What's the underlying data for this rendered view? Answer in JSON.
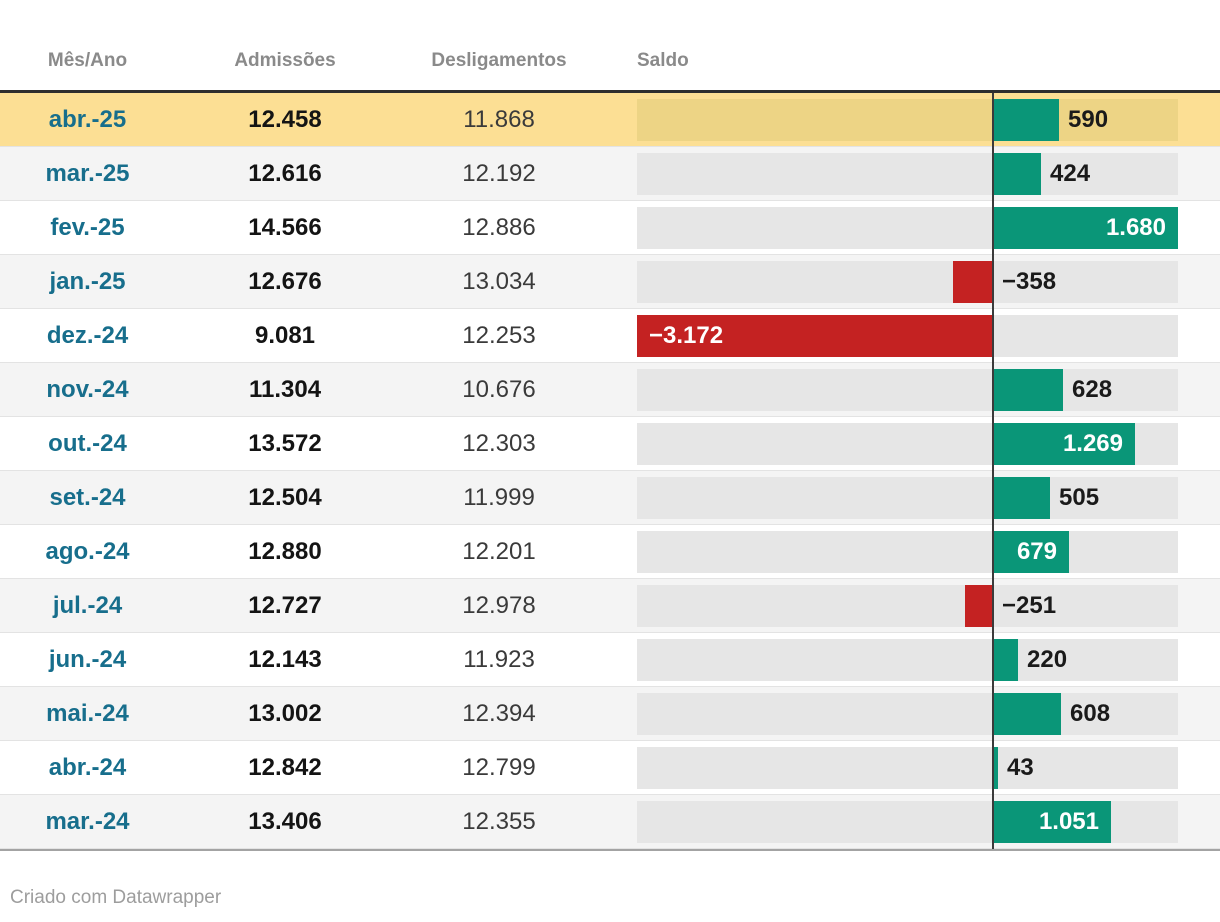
{
  "table": {
    "columns": [
      {
        "label": "Mês/Ano"
      },
      {
        "label": "Admissões"
      },
      {
        "label": "Desligamentos"
      },
      {
        "label": "Saldo"
      }
    ],
    "rows": [
      {
        "month": "abr.-25",
        "admissoes": "12.458",
        "desligamentos": "11.868",
        "saldo": 590,
        "saldo_display": "590",
        "label_inside": false,
        "highlighted": true
      },
      {
        "month": "mar.-25",
        "admissoes": "12.616",
        "desligamentos": "12.192",
        "saldo": 424,
        "saldo_display": "424",
        "label_inside": false,
        "highlighted": false
      },
      {
        "month": "fev.-25",
        "admissoes": "14.566",
        "desligamentos": "12.886",
        "saldo": 1680,
        "saldo_display": "1.680",
        "label_inside": true,
        "highlighted": false
      },
      {
        "month": "jan.-25",
        "admissoes": "12.676",
        "desligamentos": "13.034",
        "saldo": -358,
        "saldo_display": "−358",
        "label_inside": false,
        "highlighted": false
      },
      {
        "month": "dez.-24",
        "admissoes": "9.081",
        "desligamentos": "12.253",
        "saldo": -3172,
        "saldo_display": "−3.172",
        "label_inside": true,
        "highlighted": false
      },
      {
        "month": "nov.-24",
        "admissoes": "11.304",
        "desligamentos": "10.676",
        "saldo": 628,
        "saldo_display": "628",
        "label_inside": false,
        "highlighted": false
      },
      {
        "month": "out.-24",
        "admissoes": "13.572",
        "desligamentos": "12.303",
        "saldo": 1269,
        "saldo_display": "1.269",
        "label_inside": true,
        "highlighted": false
      },
      {
        "month": "set.-24",
        "admissoes": "12.504",
        "desligamentos": "11.999",
        "saldo": 505,
        "saldo_display": "505",
        "label_inside": false,
        "highlighted": false
      },
      {
        "month": "ago.-24",
        "admissoes": "12.880",
        "desligamentos": "12.201",
        "saldo": 679,
        "saldo_display": "679",
        "label_inside": true,
        "highlighted": false
      },
      {
        "month": "jul.-24",
        "admissoes": "12.727",
        "desligamentos": "12.978",
        "saldo": -251,
        "saldo_display": "−251",
        "label_inside": false,
        "highlighted": false
      },
      {
        "month": "jun.-24",
        "admissoes": "12.143",
        "desligamentos": "11.923",
        "saldo": 220,
        "saldo_display": "220",
        "label_inside": false,
        "highlighted": false
      },
      {
        "month": "mai.-24",
        "admissoes": "13.002",
        "desligamentos": "12.394",
        "saldo": 608,
        "saldo_display": "608",
        "label_inside": false,
        "highlighted": false
      },
      {
        "month": "abr.-24",
        "admissoes": "12.842",
        "desligamentos": "12.799",
        "saldo": 43,
        "saldo_display": "43",
        "label_inside": false,
        "highlighted": false
      },
      {
        "month": "mar.-24",
        "admissoes": "13.406",
        "desligamentos": "12.355",
        "saldo": 1051,
        "saldo_display": "1.051",
        "label_inside": true,
        "highlighted": false
      }
    ]
  },
  "footer": {
    "credit": "Criado com Datawrapper"
  },
  "colors": {
    "positive_bar": "#0a9678",
    "negative_bar": "#c42222",
    "highlight_row": "#fcdf94",
    "highlight_track": "#edd485",
    "track": "#e6e6e6",
    "alt_row": "#f4f4f4",
    "month_text": "#176e8c",
    "header_text": "#8a8a8a",
    "zero_line": "#3b3b3b"
  },
  "chart_data": {
    "type": "table",
    "title": "",
    "columns": [
      "Mês/Ano",
      "Admissões",
      "Desligamentos",
      "Saldo"
    ],
    "categories": [
      "abr.-25",
      "mar.-25",
      "fev.-25",
      "jan.-25",
      "dez.-24",
      "nov.-24",
      "out.-24",
      "set.-24",
      "ago.-24",
      "jul.-24",
      "jun.-24",
      "mai.-24",
      "abr.-24",
      "mar.-24"
    ],
    "series": [
      {
        "name": "Admissões",
        "values": [
          12458,
          12616,
          14566,
          12676,
          9081,
          11304,
          13572,
          12504,
          12880,
          12727,
          12143,
          13002,
          12842,
          13406
        ]
      },
      {
        "name": "Desligamentos",
        "values": [
          11868,
          12192,
          12886,
          13034,
          12253,
          10676,
          12303,
          11999,
          12201,
          12978,
          11923,
          12394,
          12799,
          12355
        ]
      },
      {
        "name": "Saldo",
        "values": [
          590,
          424,
          1680,
          -358,
          -3172,
          628,
          1269,
          505,
          679,
          -251,
          220,
          608,
          43,
          1051
        ]
      }
    ],
    "saldo_column_chart": {
      "type": "bar",
      "orientation": "horizontal",
      "xlim": [
        -3172,
        1680
      ],
      "zero_line": true,
      "positive_color": "#0a9678",
      "negative_color": "#c42222",
      "highlighted_row": "abr.-25"
    },
    "legend": "none",
    "grid": "off"
  }
}
